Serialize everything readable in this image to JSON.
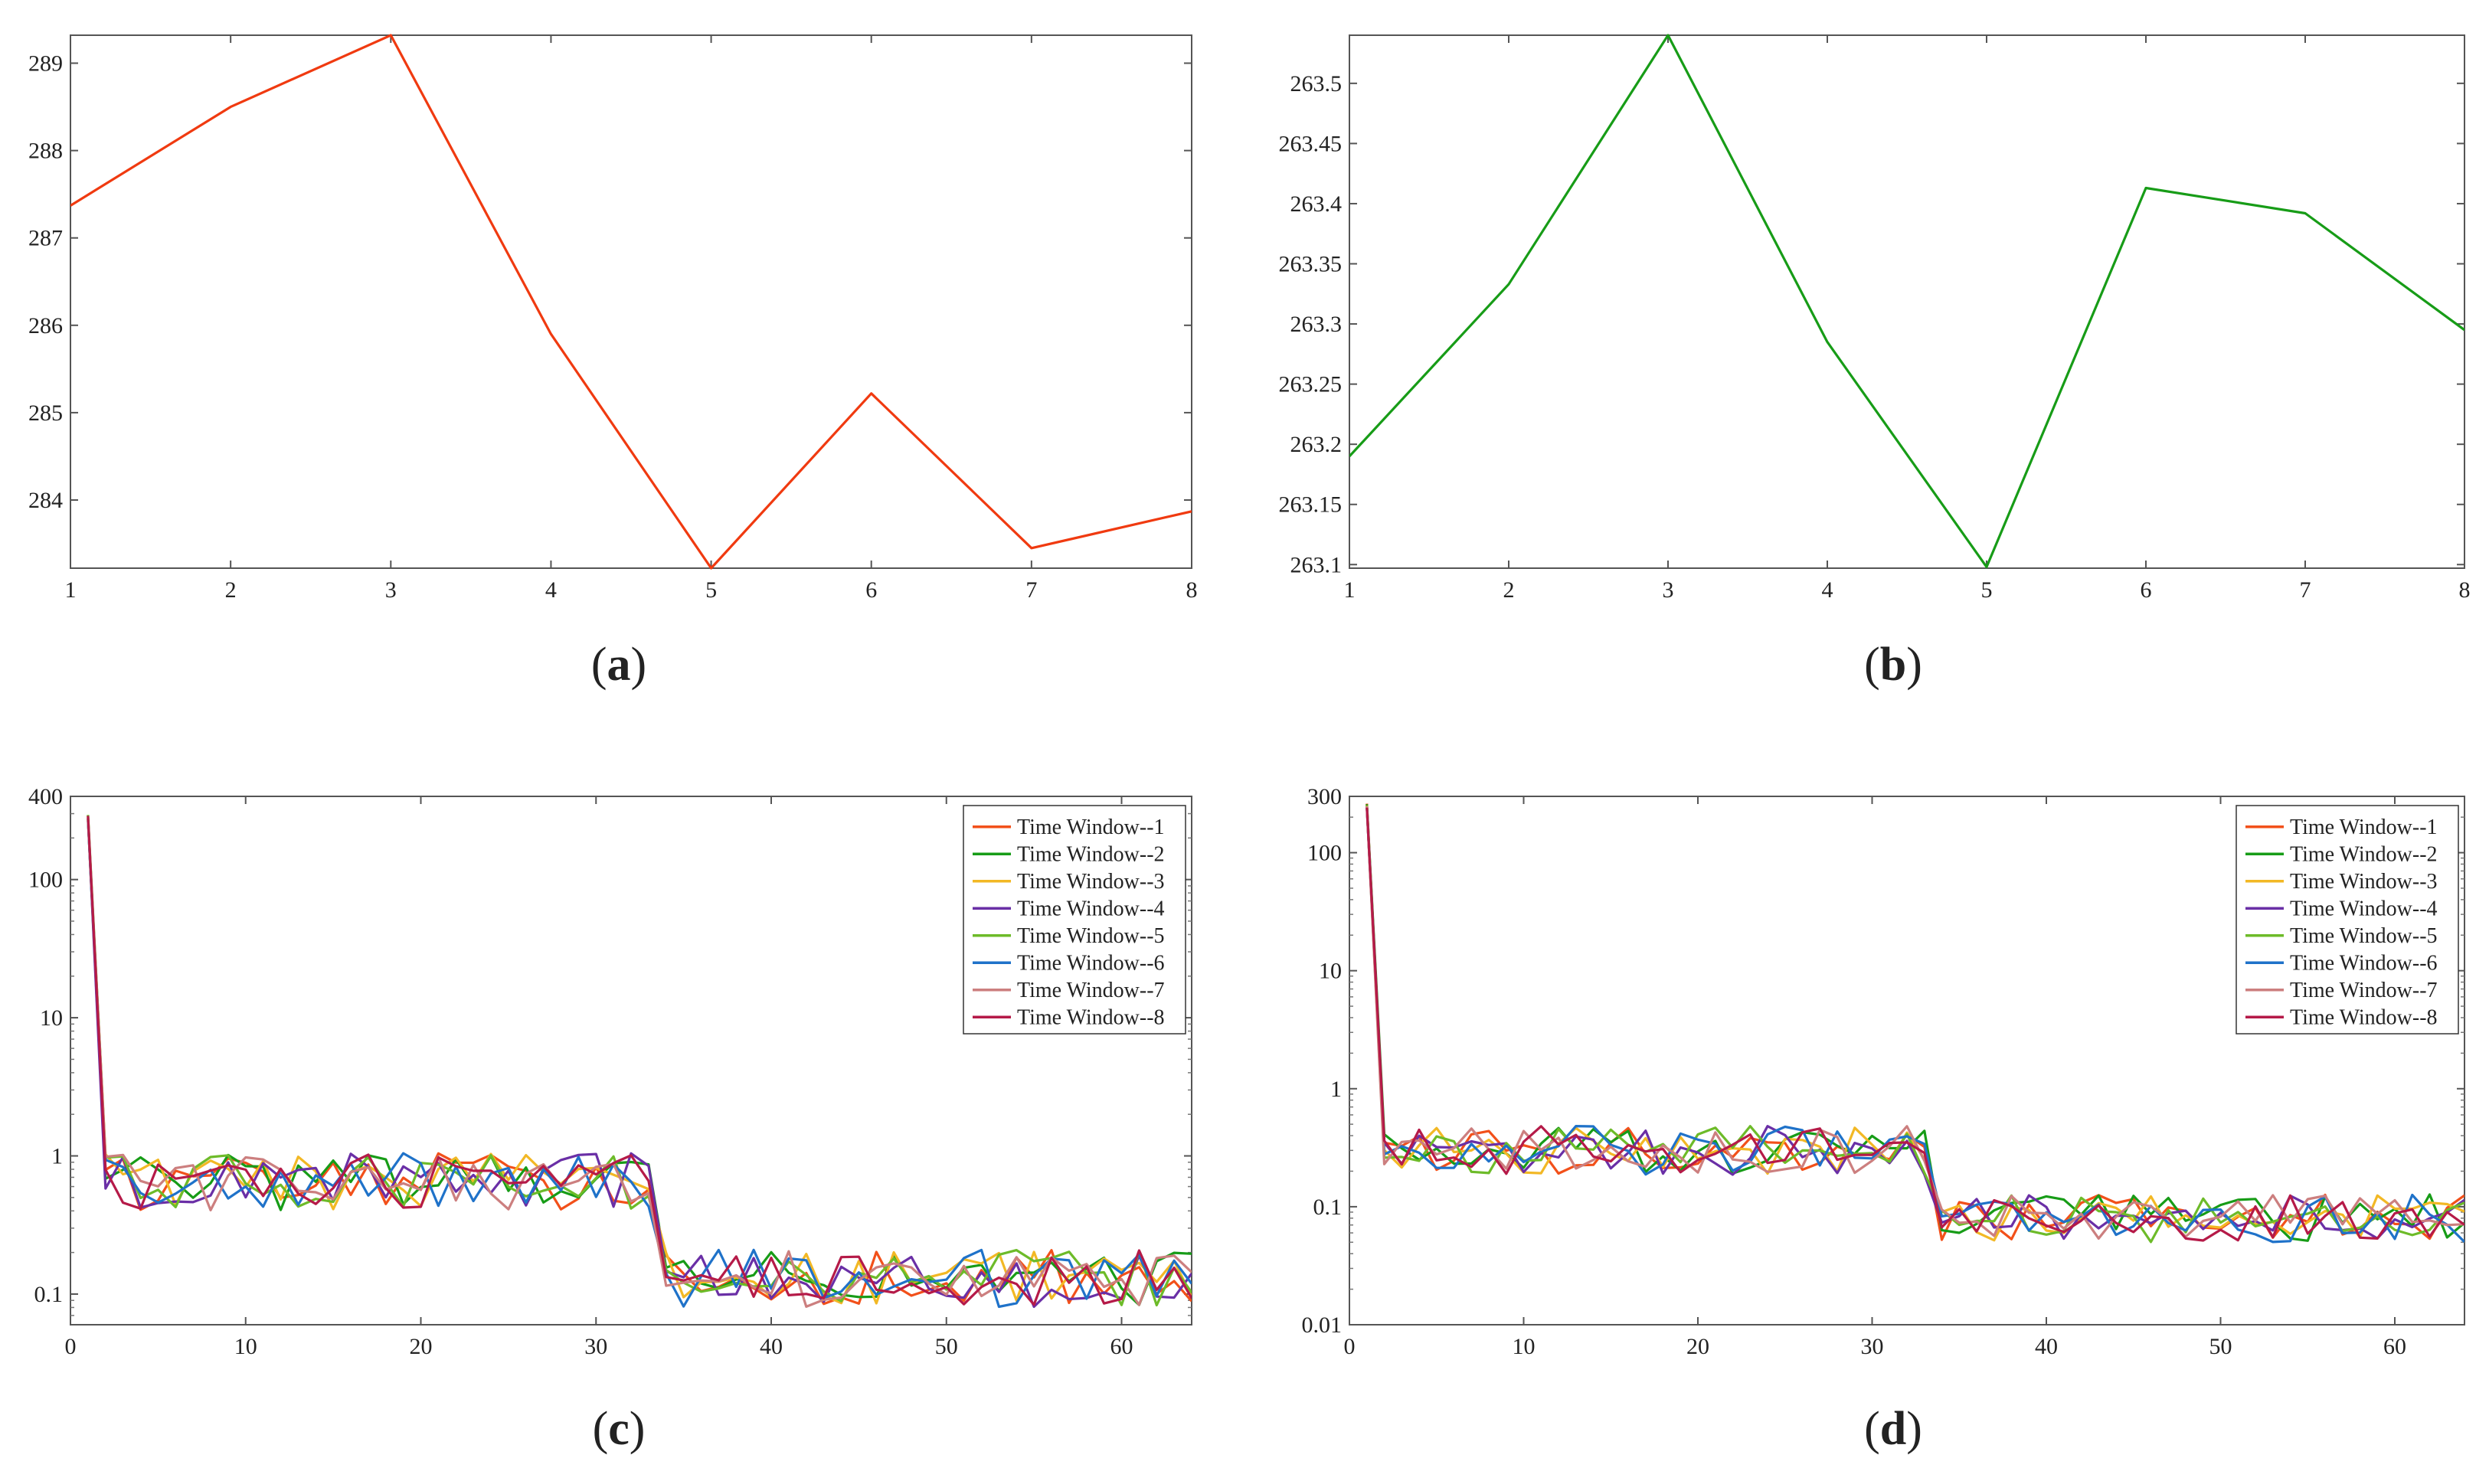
{
  "chart_data": [
    {
      "id": "a",
      "panel_label": "a",
      "type": "line",
      "x": [
        1,
        2,
        3,
        4,
        5,
        6,
        7,
        8
      ],
      "series": [
        {
          "name": "",
          "color": "#f03a10",
          "values": [
            287.37,
            288.5,
            289.32,
            285.9,
            283.22,
            285.22,
            283.45,
            283.87
          ]
        }
      ],
      "xlim": [
        1,
        8
      ],
      "ylim": [
        283.22,
        289.32
      ],
      "yscale": "linear",
      "xticks": [
        1,
        2,
        3,
        4,
        5,
        6,
        7,
        8
      ],
      "xtick_labels": [
        "1",
        "2",
        "3",
        "4",
        "5",
        "6",
        "7",
        "8"
      ],
      "yticks": [
        284,
        285,
        286,
        287,
        288,
        289
      ],
      "ytick_labels": [
        "284",
        "285",
        "286",
        "287",
        "288",
        "289"
      ],
      "legend": false,
      "grid": false
    },
    {
      "id": "b",
      "panel_label": "b",
      "type": "line",
      "x": [
        1,
        2,
        3,
        4,
        5,
        6,
        7,
        8
      ],
      "series": [
        {
          "name": "",
          "color": "#179c17",
          "values": [
            263.19,
            263.333,
            263.54,
            263.285,
            263.098,
            263.413,
            263.392,
            263.295
          ]
        }
      ],
      "xlim": [
        1,
        8
      ],
      "ylim": [
        263.097,
        263.54
      ],
      "yscale": "linear",
      "xticks": [
        1,
        2,
        3,
        4,
        5,
        6,
        7,
        8
      ],
      "xtick_labels": [
        "1",
        "2",
        "3",
        "4",
        "5",
        "6",
        "7",
        "8"
      ],
      "yticks": [
        263.1,
        263.15,
        263.2,
        263.25,
        263.3,
        263.35,
        263.4,
        263.45,
        263.5
      ],
      "ytick_labels": [
        "263.1",
        "263.15",
        "263.2",
        "263.25",
        "263.3",
        "263.35",
        "263.4",
        "263.45",
        "263.5"
      ],
      "legend": false,
      "grid": false
    },
    {
      "id": "c",
      "panel_label": "c",
      "type": "line",
      "yscale": "log",
      "xlim": [
        0,
        64
      ],
      "ylim": [
        0.06,
        400
      ],
      "xticks": [
        0,
        10,
        20,
        30,
        40,
        50,
        60
      ],
      "xtick_labels": [
        "0",
        "10",
        "20",
        "30",
        "40",
        "50",
        "60"
      ],
      "yticks": [
        0.1,
        1,
        10,
        100,
        400
      ],
      "ytick_labels": [
        "0.1",
        "1",
        "10",
        "100",
        "400"
      ],
      "legend": true,
      "legend_position": "top-right",
      "grid": false,
      "segments": [
        {
          "from": 1,
          "to": 1,
          "value": 280
        },
        {
          "from": 2,
          "to": 33,
          "value": 0.65
        },
        {
          "from": 34,
          "to": 64,
          "value": 0.13
        }
      ],
      "series": [
        {
          "name": "Time Window--1",
          "color": "#f2501a"
        },
        {
          "name": "Time Window--2",
          "color": "#179c17"
        },
        {
          "name": "Time Window--3",
          "color": "#f2b825"
        },
        {
          "name": "Time Window--4",
          "color": "#6a2fa6"
        },
        {
          "name": "Time Window--5",
          "color": "#6dbb29"
        },
        {
          "name": "Time Window--6",
          "color": "#1f72c9"
        },
        {
          "name": "Time Window--7",
          "color": "#cc7f7f"
        },
        {
          "name": "Time Window--8",
          "color": "#b51a48"
        }
      ]
    },
    {
      "id": "d",
      "panel_label": "d",
      "type": "line",
      "yscale": "log",
      "xlim": [
        0,
        64
      ],
      "ylim": [
        0.01,
        300
      ],
      "xticks": [
        0,
        10,
        20,
        30,
        40,
        50,
        60
      ],
      "xtick_labels": [
        "0",
        "10",
        "20",
        "30",
        "40",
        "50",
        "60"
      ],
      "yticks": [
        0.01,
        0.1,
        1,
        10,
        100,
        300
      ],
      "ytick_labels": [
        "0.01",
        "0.1",
        "1",
        "10",
        "100",
        "300"
      ],
      "legend": true,
      "legend_position": "top-right",
      "grid": false,
      "segments": [
        {
          "from": 1,
          "to": 1,
          "value": 250
        },
        {
          "from": 2,
          "to": 33,
          "value": 0.3
        },
        {
          "from": 34,
          "to": 64,
          "value": 0.08
        }
      ],
      "series": [
        {
          "name": "Time Window--1",
          "color": "#f2501a"
        },
        {
          "name": "Time Window--2",
          "color": "#179c17"
        },
        {
          "name": "Time Window--3",
          "color": "#f2b825"
        },
        {
          "name": "Time Window--4",
          "color": "#6a2fa6"
        },
        {
          "name": "Time Window--5",
          "color": "#6dbb29"
        },
        {
          "name": "Time Window--6",
          "color": "#1f72c9"
        },
        {
          "name": "Time Window--7",
          "color": "#cc7f7f"
        },
        {
          "name": "Time Window--8",
          "color": "#b51a48"
        }
      ]
    }
  ]
}
